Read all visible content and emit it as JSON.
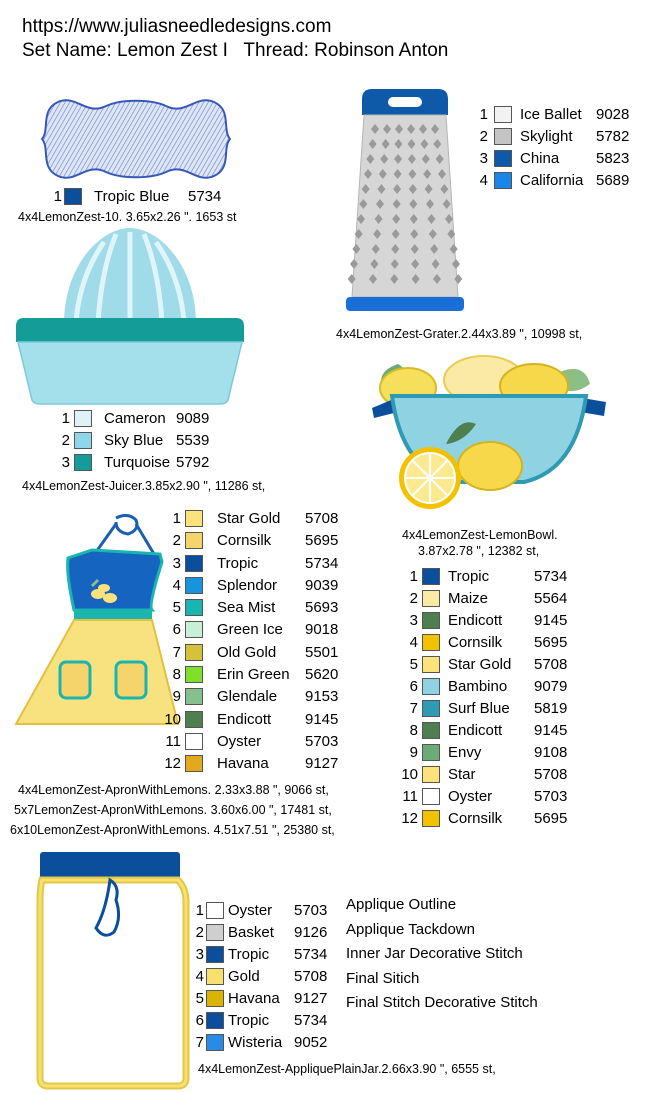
{
  "header": {
    "url": "https://www.juliasneedledesigns.com",
    "set_line": "Set Name: Lemon Zest I   Thread: Robinson Anton"
  },
  "designs": {
    "label": {
      "caption": "4x4LemonZest-10. 3.65x2.26 \". 1653 st",
      "colors": [
        {
          "n": "1",
          "name": "Tropic Blue",
          "code": "5734",
          "hex": "#0b4f9c"
        }
      ]
    },
    "grater": {
      "caption": "4x4LemonZest-Grater.2.44x3.89 \", 10998 st,",
      "colors": [
        {
          "n": "1",
          "name": "Ice Ballet",
          "code": "9028",
          "hex": "#f2f2f2"
        },
        {
          "n": "2",
          "name": "Skylight",
          "code": "5782",
          "hex": "#c4c4c4"
        },
        {
          "n": "3",
          "name": "China",
          "code": "5823",
          "hex": "#0f5aa8"
        },
        {
          "n": "4",
          "name": "California",
          "code": "5689",
          "hex": "#1a86e8"
        }
      ]
    },
    "juicer": {
      "caption": "4x4LemonZest-Juicer.3.85x2.90 \", 11286 st,",
      "colors": [
        {
          "n": "1",
          "name": "Cameron",
          "code": "9089",
          "hex": "#dff3f7"
        },
        {
          "n": "2",
          "name": "Sky Blue",
          "code": "5539",
          "hex": "#8fd6e8"
        },
        {
          "n": "3",
          "name": "Turquoise",
          "code": "5792",
          "hex": "#149c99"
        }
      ]
    },
    "lemonbowl": {
      "caption_line1": "4x4LemonZest-LemonBowl.",
      "caption_line2": "3.87x2.78 \", 12382 st,",
      "colors": [
        {
          "n": "1",
          "name": "Tropic",
          "code": "5734",
          "hex": "#0b4f9c"
        },
        {
          "n": "2",
          "name": "Maize",
          "code": "5564",
          "hex": "#fbeaa6"
        },
        {
          "n": "3",
          "name": "Endicott",
          "code": "9145",
          "hex": "#4d7f4f"
        },
        {
          "n": "4",
          "name": "Cornsilk",
          "code": "5695",
          "hex": "#f2c200"
        },
        {
          "n": "5",
          "name": "Star Gold",
          "code": "5708",
          "hex": "#fbe27a"
        },
        {
          "n": "6",
          "name": "Bambino",
          "code": "9079",
          "hex": "#8fd3e3"
        },
        {
          "n": "7",
          "name": "Surf Blue",
          "code": "5819",
          "hex": "#2f9bb3"
        },
        {
          "n": "8",
          "name": "Endicott",
          "code": "9145",
          "hex": "#4d7f4f"
        },
        {
          "n": "9",
          "name": "Envy",
          "code": "9108",
          "hex": "#6aab76"
        },
        {
          "n": "10",
          "name": "Star",
          "code": "5708",
          "hex": "#fbe27a"
        },
        {
          "n": "11",
          "name": "Oyster",
          "code": "5703",
          "hex": "#ffffff"
        },
        {
          "n": "12",
          "name": "Cornsilk",
          "code": "5695",
          "hex": "#f2c200"
        }
      ]
    },
    "apron": {
      "captions": [
        "4x4LemonZest-ApronWithLemons. 2.33x3.88 \", 9066 st,",
        "5x7LemonZest-ApronWithLemons. 3.60x6.00 \", 17481 st,",
        "6x10LemonZest-ApronWithLemons. 4.51x7.51 \", 25380 st,"
      ],
      "colors": [
        {
          "n": "1",
          "name": "Star Gold",
          "code": "5708",
          "hex": "#fbe27a"
        },
        {
          "n": "2",
          "name": "Cornsilk",
          "code": "5695",
          "hex": "#f4d46b"
        },
        {
          "n": "3",
          "name": "Tropic",
          "code": "5734",
          "hex": "#0b4f9c"
        },
        {
          "n": "4",
          "name": "Splendor",
          "code": "9039",
          "hex": "#1694e0"
        },
        {
          "n": "5",
          "name": "Sea Mist",
          "code": "5693",
          "hex": "#1bb5b0"
        },
        {
          "n": "6",
          "name": "Green Ice",
          "code": "9018",
          "hex": "#c7f0d4"
        },
        {
          "n": "7",
          "name": "Old Gold",
          "code": "5501",
          "hex": "#d4c33a"
        },
        {
          "n": "8",
          "name": "Erin Green",
          "code": "5620",
          "hex": "#7ee02a"
        },
        {
          "n": "9",
          "name": "Glendale",
          "code": "9153",
          "hex": "#86c08e"
        },
        {
          "n": "10",
          "name": "Endicott",
          "code": "9145",
          "hex": "#4d7f4f"
        },
        {
          "n": "11",
          "name": "Oyster",
          "code": "5703",
          "hex": "#ffffff"
        },
        {
          "n": "12",
          "name": "Havana",
          "code": "9127",
          "hex": "#e3a91e"
        }
      ]
    },
    "jar": {
      "caption": "4x4LemonZest-AppliquePlainJar.2.66x3.90 \", 6555 st,",
      "colors": [
        {
          "n": "1",
          "name": "Oyster",
          "code": "5703",
          "hex": "#ffffff"
        },
        {
          "n": "2",
          "name": "Basket",
          "code": "9126",
          "hex": "#cfcfcf"
        },
        {
          "n": "3",
          "name": "Tropic",
          "code": "5734",
          "hex": "#0b4f9c"
        },
        {
          "n": "4",
          "name": "Gold",
          "code": "5708",
          "hex": "#f8e06c"
        },
        {
          "n": "5",
          "name": "Havana",
          "code": "9127",
          "hex": "#d9b400"
        },
        {
          "n": "6",
          "name": "Tropic",
          "code": "5734",
          "hex": "#0b4f9c"
        },
        {
          "n": "7",
          "name": "Wisteria",
          "code": "9052",
          "hex": "#2a8ae8"
        }
      ],
      "notes": [
        "Applique Outline",
        "Applique Tackdown",
        "Inner Jar Decorative Stitch",
        "Final Sitich",
        "Final Stitch Decorative Stitch"
      ]
    }
  }
}
